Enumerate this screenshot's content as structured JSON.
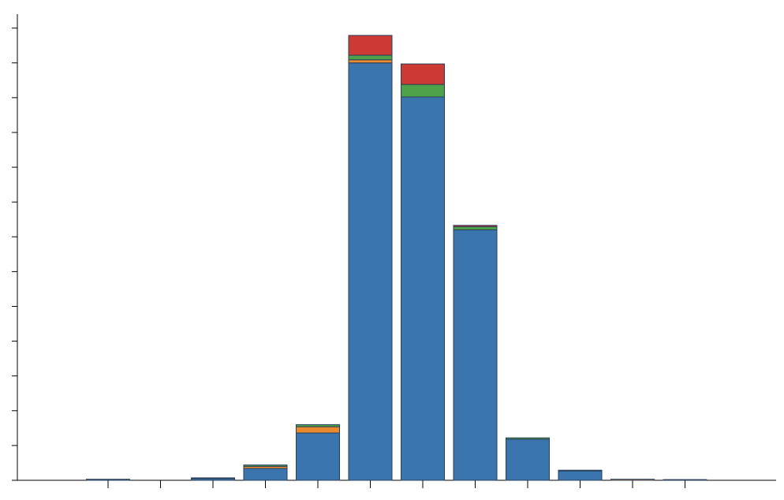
{
  "chart_data": {
    "type": "stacked-bar",
    "categories": [
      null,
      null,
      null,
      null,
      null,
      null,
      null,
      null,
      null,
      null,
      null,
      null
    ],
    "series": [
      {
        "color": "#3a75ad",
        "values": [
          0.3,
          0,
          0.5,
          3.4,
          13.6,
          120,
          110.2,
          72,
          11.8,
          2.7,
          0,
          0.2
        ]
      },
      {
        "color": "#e98a2e",
        "values": [
          0,
          0,
          0,
          0.6,
          1.8,
          0.9,
          0,
          0,
          0,
          0,
          0.3,
          0
        ]
      },
      {
        "color": "#4fa24a",
        "values": [
          0,
          0,
          0.2,
          0.4,
          0.6,
          1.3,
          3.6,
          0.9,
          0.4,
          0.2,
          0,
          0
        ]
      },
      {
        "color": "#cc3a33",
        "values": [
          0,
          0,
          0,
          0,
          0,
          5.7,
          5.9,
          0.4,
          0,
          0,
          0,
          0
        ]
      }
    ],
    "ylim": [
      0,
      134
    ],
    "yticks": [
      0,
      10,
      20,
      30,
      40,
      50,
      60,
      70,
      80,
      90,
      100,
      110,
      120,
      130
    ]
  }
}
